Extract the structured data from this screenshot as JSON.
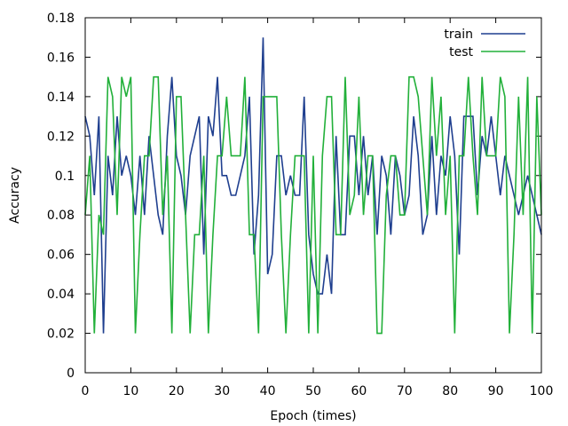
{
  "chart_data": {
    "type": "line",
    "xlabel": "Epoch (times)",
    "ylabel": "Accuracy",
    "xlim": [
      0,
      100
    ],
    "ylim": [
      0,
      0.18
    ],
    "xticks": [
      0,
      10,
      20,
      30,
      40,
      50,
      60,
      70,
      80,
      90,
      100
    ],
    "xtick_labels": [
      "0",
      "10",
      "20",
      "30",
      "40",
      "50",
      "60",
      "70",
      "80",
      "90",
      "100"
    ],
    "yticks": [
      0,
      0.02,
      0.04,
      0.06,
      0.08,
      0.1,
      0.12,
      0.14,
      0.16,
      0.18
    ],
    "ytick_labels": [
      "0",
      "0.02",
      "0.04",
      "0.06",
      "0.08",
      "0.1",
      "0.12",
      "0.14",
      "0.16",
      "0.18"
    ],
    "grid": false,
    "legend_position": "top-right",
    "x": [
      0,
      1,
      2,
      3,
      4,
      5,
      6,
      7,
      8,
      9,
      10,
      11,
      12,
      13,
      14,
      15,
      16,
      17,
      18,
      19,
      20,
      21,
      22,
      23,
      24,
      25,
      26,
      27,
      28,
      29,
      30,
      31,
      32,
      33,
      34,
      35,
      36,
      37,
      38,
      39,
      40,
      41,
      42,
      43,
      44,
      45,
      46,
      47,
      48,
      49,
      50,
      51,
      52,
      53,
      54,
      55,
      56,
      57,
      58,
      59,
      60,
      61,
      62,
      63,
      64,
      65,
      66,
      67,
      68,
      69,
      70,
      71,
      72,
      73,
      74,
      75,
      76,
      77,
      78,
      79,
      80,
      81,
      82,
      83,
      84,
      85,
      86,
      87,
      88,
      89,
      90,
      91,
      92,
      93,
      94,
      95,
      96,
      97,
      98,
      99,
      100
    ],
    "series": [
      {
        "name": "train",
        "color": "#1f3f8f",
        "values": [
          0.13,
          0.12,
          0.09,
          0.13,
          0.02,
          0.11,
          0.09,
          0.13,
          0.1,
          0.11,
          0.1,
          0.08,
          0.11,
          0.08,
          0.12,
          0.1,
          0.08,
          0.07,
          0.12,
          0.15,
          0.11,
          0.1,
          0.08,
          0.11,
          0.12,
          0.13,
          0.06,
          0.13,
          0.12,
          0.15,
          0.1,
          0.1,
          0.09,
          0.09,
          0.1,
          0.11,
          0.14,
          0.06,
          0.09,
          0.17,
          0.05,
          0.06,
          0.11,
          0.11,
          0.09,
          0.1,
          0.09,
          0.09,
          0.14,
          0.07,
          0.05,
          0.04,
          0.04,
          0.06,
          0.04,
          0.12,
          0.07,
          0.07,
          0.12,
          0.12,
          0.09,
          0.12,
          0.09,
          0.11,
          0.07,
          0.11,
          0.1,
          0.07,
          0.11,
          0.1,
          0.08,
          0.09,
          0.13,
          0.11,
          0.07,
          0.08,
          0.12,
          0.08,
          0.11,
          0.1,
          0.13,
          0.11,
          0.06,
          0.13,
          0.13,
          0.13,
          0.09,
          0.12,
          0.11,
          0.13,
          0.11,
          0.09,
          0.11,
          0.1,
          0.09,
          0.08,
          0.09,
          0.1,
          0.09,
          0.08,
          0.07
        ]
      },
      {
        "name": "test",
        "color": "#22b03a",
        "values": [
          0.08,
          0.11,
          0.02,
          0.08,
          0.07,
          0.15,
          0.14,
          0.08,
          0.15,
          0.14,
          0.15,
          0.02,
          0.07,
          0.11,
          0.11,
          0.15,
          0.15,
          0.08,
          0.11,
          0.02,
          0.14,
          0.14,
          0.08,
          0.02,
          0.07,
          0.07,
          0.11,
          0.02,
          0.07,
          0.11,
          0.11,
          0.14,
          0.11,
          0.11,
          0.11,
          0.15,
          0.07,
          0.07,
          0.02,
          0.14,
          0.14,
          0.14,
          0.14,
          0.07,
          0.02,
          0.07,
          0.11,
          0.11,
          0.11,
          0.02,
          0.11,
          0.02,
          0.11,
          0.14,
          0.14,
          0.07,
          0.07,
          0.15,
          0.08,
          0.09,
          0.14,
          0.08,
          0.11,
          0.11,
          0.02,
          0.02,
          0.09,
          0.11,
          0.11,
          0.08,
          0.08,
          0.15,
          0.15,
          0.14,
          0.11,
          0.08,
          0.15,
          0.11,
          0.14,
          0.08,
          0.11,
          0.02,
          0.11,
          0.11,
          0.15,
          0.11,
          0.08,
          0.15,
          0.11,
          0.11,
          0.11,
          0.15,
          0.14,
          0.02,
          0.07,
          0.14,
          0.08,
          0.15,
          0.02,
          0.14,
          0.08
        ]
      }
    ]
  }
}
